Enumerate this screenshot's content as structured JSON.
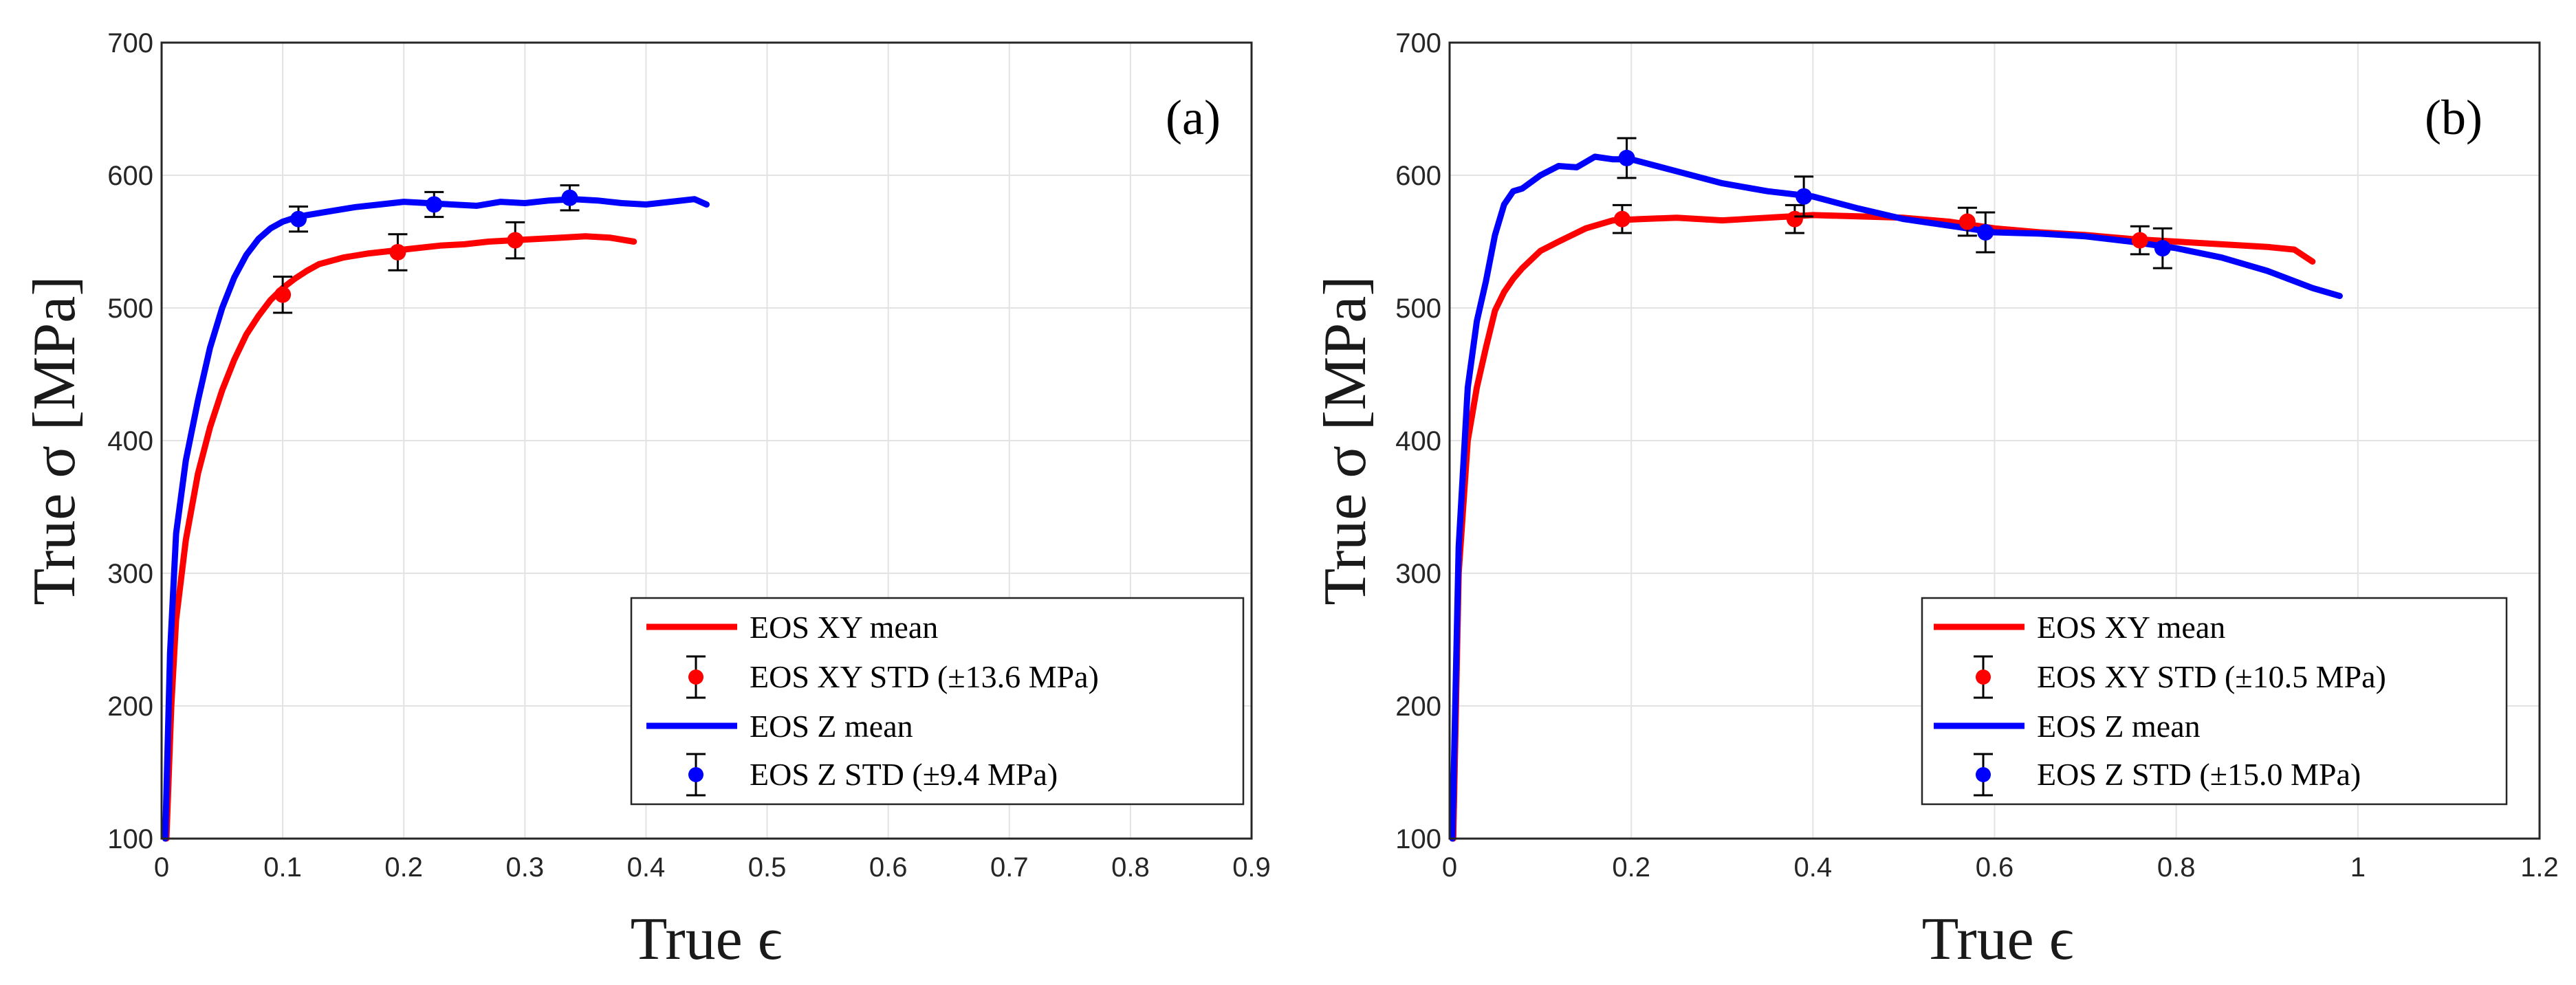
{
  "chart_data": [
    {
      "type": "line",
      "panel_label": "(a)",
      "xlabel": "True ϵ",
      "ylabel": "True σ [MPa]",
      "xlim": [
        0,
        0.9
      ],
      "ylim": [
        100,
        700
      ],
      "xticks": [
        0,
        0.1,
        0.2,
        0.3,
        0.4,
        0.5,
        0.6,
        0.7,
        0.8,
        0.9
      ],
      "xtick_labels": [
        "0",
        "0.1",
        "0.2",
        "0.3",
        "0.4",
        "0.5",
        "0.6",
        "0.7",
        "0.8",
        "0.9"
      ],
      "yticks": [
        100,
        200,
        300,
        400,
        500,
        600,
        700
      ],
      "ytick_labels": [
        "100",
        "200",
        "300",
        "400",
        "500",
        "600",
        "700"
      ],
      "grid": true,
      "legend_position": "bottom-right",
      "series": [
        {
          "name": "EOS XY mean",
          "color": "#ff0000",
          "x": [
            0.004,
            0.008,
            0.012,
            0.02,
            0.03,
            0.04,
            0.05,
            0.06,
            0.07,
            0.08,
            0.09,
            0.1,
            0.11,
            0.12,
            0.13,
            0.15,
            0.17,
            0.19,
            0.21,
            0.23,
            0.25,
            0.27,
            0.29,
            0.31,
            0.33,
            0.35,
            0.37,
            0.39
          ],
          "y": [
            100,
            200,
            265,
            325,
            375,
            410,
            438,
            461,
            480,
            494,
            506,
            515,
            522,
            528,
            533,
            538,
            541,
            543,
            545,
            547,
            548,
            550,
            551,
            552,
            553,
            554,
            553,
            550
          ]
        },
        {
          "name": "EOS Z mean",
          "color": "#0000ff",
          "x": [
            0.003,
            0.007,
            0.012,
            0.02,
            0.03,
            0.04,
            0.05,
            0.06,
            0.07,
            0.08,
            0.09,
            0.1,
            0.11,
            0.12,
            0.14,
            0.16,
            0.18,
            0.2,
            0.22,
            0.24,
            0.26,
            0.28,
            0.3,
            0.32,
            0.34,
            0.36,
            0.38,
            0.4,
            0.42,
            0.44,
            0.45
          ],
          "y": [
            100,
            240,
            330,
            385,
            430,
            470,
            500,
            523,
            540,
            552,
            560,
            565,
            568,
            570,
            573,
            576,
            578,
            580,
            579,
            578,
            577,
            580,
            579,
            581,
            582,
            581,
            579,
            578,
            580,
            582,
            578
          ]
        }
      ],
      "error_bars": [
        {
          "name": "EOS XY STD (±13.6 MPa)",
          "color": "#ff0000",
          "std": 13.6,
          "points": [
            {
              "x": 0.1,
              "y": 510
            },
            {
              "x": 0.195,
              "y": 542
            },
            {
              "x": 0.292,
              "y": 551
            }
          ]
        },
        {
          "name": "EOS Z STD (±9.4 MPa)",
          "color": "#0000ff",
          "std": 9.4,
          "points": [
            {
              "x": 0.113,
              "y": 567
            },
            {
              "x": 0.225,
              "y": 578
            },
            {
              "x": 0.337,
              "y": 583
            }
          ]
        }
      ]
    },
    {
      "type": "line",
      "panel_label": "(b)",
      "xlabel": "True ϵ",
      "ylabel": "True σ [MPa]",
      "xlim": [
        0,
        1.2
      ],
      "ylim": [
        100,
        700
      ],
      "xticks": [
        0,
        0.2,
        0.4,
        0.6,
        0.8,
        1,
        1.2
      ],
      "xtick_labels": [
        "0",
        "0.2",
        "0.4",
        "0.6",
        "0.8",
        "1",
        "1.2"
      ],
      "yticks": [
        100,
        200,
        300,
        400,
        500,
        600,
        700
      ],
      "ytick_labels": [
        "100",
        "200",
        "300",
        "400",
        "500",
        "600",
        "700"
      ],
      "grid": true,
      "legend_position": "bottom-right",
      "series": [
        {
          "name": "EOS XY mean",
          "color": "#ff0000",
          "x": [
            0.004,
            0.01,
            0.02,
            0.03,
            0.04,
            0.05,
            0.06,
            0.07,
            0.08,
            0.1,
            0.12,
            0.15,
            0.18,
            0.21,
            0.25,
            0.3,
            0.35,
            0.4,
            0.45,
            0.5,
            0.55,
            0.6,
            0.65,
            0.7,
            0.75,
            0.8,
            0.85,
            0.9,
            0.93,
            0.95
          ],
          "y": [
            100,
            300,
            400,
            440,
            470,
            498,
            512,
            522,
            530,
            543,
            550,
            560,
            566,
            567,
            568,
            566,
            568,
            570,
            569,
            568,
            565,
            560,
            557,
            555,
            552,
            550,
            548,
            546,
            544,
            535
          ]
        },
        {
          "name": "EOS Z mean",
          "color": "#0000ff",
          "x": [
            0.003,
            0.01,
            0.02,
            0.03,
            0.04,
            0.05,
            0.06,
            0.07,
            0.08,
            0.1,
            0.12,
            0.14,
            0.16,
            0.18,
            0.2,
            0.25,
            0.3,
            0.35,
            0.4,
            0.45,
            0.5,
            0.55,
            0.6,
            0.65,
            0.7,
            0.75,
            0.8,
            0.85,
            0.9,
            0.95,
            0.98
          ],
          "y": [
            100,
            320,
            440,
            490,
            520,
            555,
            578,
            588,
            590,
            600,
            607,
            606,
            614,
            612,
            612,
            603,
            594,
            588,
            584,
            575,
            567,
            562,
            557,
            556,
            554,
            550,
            545,
            538,
            528,
            515,
            509
          ]
        }
      ],
      "error_bars": [
        {
          "name": "EOS XY STD (±10.5 MPa)",
          "color": "#ff0000",
          "std": 10.5,
          "points": [
            {
              "x": 0.19,
              "y": 567
            },
            {
              "x": 0.38,
              "y": 567
            },
            {
              "x": 0.57,
              "y": 565
            },
            {
              "x": 0.76,
              "y": 551
            }
          ]
        },
        {
          "name": "EOS Z STD (±15.0 MPa)",
          "color": "#0000ff",
          "std": 15.0,
          "points": [
            {
              "x": 0.195,
              "y": 613
            },
            {
              "x": 0.39,
              "y": 584
            },
            {
              "x": 0.59,
              "y": 557
            },
            {
              "x": 0.785,
              "y": 545
            }
          ]
        }
      ]
    }
  ]
}
